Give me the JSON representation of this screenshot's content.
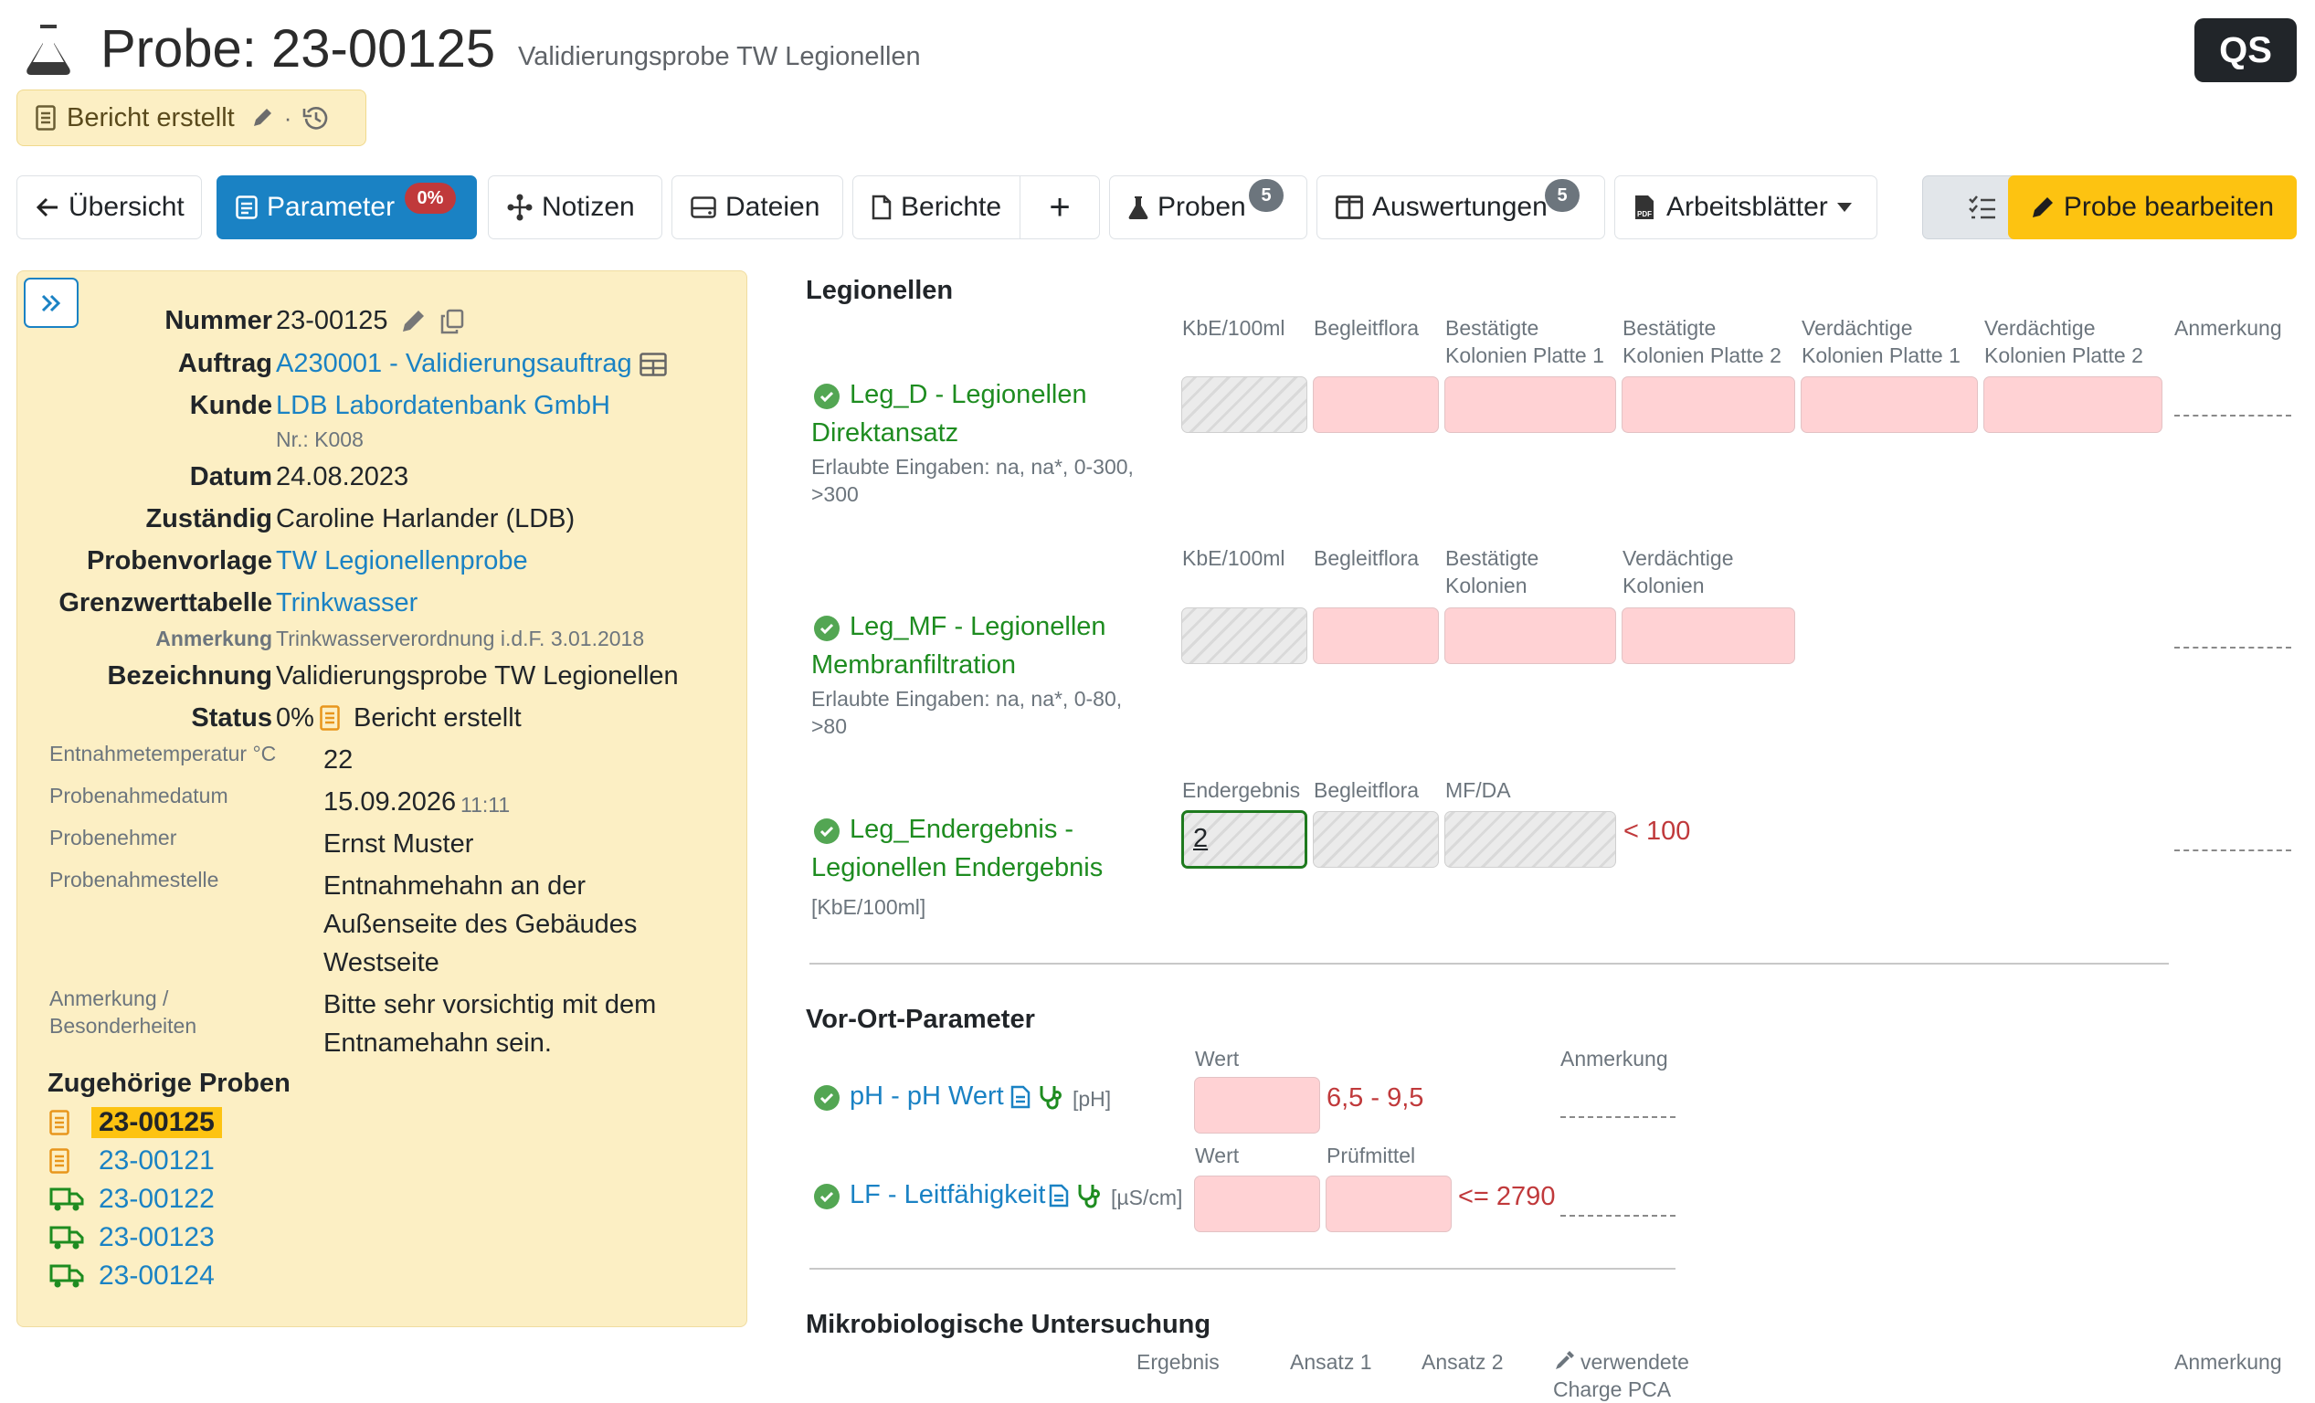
{
  "header": {
    "title": "Probe: 23-00125",
    "subtitle": "Validierungsprobe TW Legionellen",
    "qs": "QS"
  },
  "status_pill": {
    "label": "Bericht erstellt",
    "sep": "·"
  },
  "toolbar": {
    "back": "Übersicht",
    "parameter": "Parameter",
    "parameter_badge": "0%",
    "notizen": "Notizen",
    "dateien": "Dateien",
    "berichte": "Berichte",
    "add": "+",
    "proben": "Proben",
    "proben_count": "5",
    "auswertungen": "Auswertungen",
    "auswertungen_count": "5",
    "arbeitsblaetter": "Arbeitsblätter",
    "edit": "Probe bearbeiten"
  },
  "details": {
    "nummer": {
      "label": "Nummer",
      "value": "23-00125"
    },
    "auftrag": {
      "label": "Auftrag",
      "value": "A230001 - Validierungsauftrag"
    },
    "kunde": {
      "label": "Kunde",
      "value": "LDB Labordatenbank GmbH",
      "note": "Nr.: K008"
    },
    "datum": {
      "label": "Datum",
      "value": "24.08.2023"
    },
    "zustaendig": {
      "label": "Zuständig",
      "value": "Caroline Harlander (LDB)"
    },
    "probenvorlage": {
      "label": "Probenvorlage",
      "value": "TW Legionellenprobe"
    },
    "grenzwert": {
      "label": "Grenzwerttabelle",
      "value": "Trinkwasser"
    },
    "anmerkung": {
      "label": "Anmerkung",
      "value": "Trinkwasserverordnung i.d.F. 3.01.2018"
    },
    "bezeichnung": {
      "label": "Bezeichnung",
      "value": "Validierungsprobe TW Legionellen"
    },
    "status": {
      "label": "Status",
      "percent": "0%",
      "value": "Bericht erstellt"
    },
    "temp": {
      "label": "Entnahmetemperatur °C",
      "value": "22"
    },
    "pdatum": {
      "label": "Probenahmedatum",
      "value": "15.09.2026",
      "time": "11:11"
    },
    "nehmer": {
      "label": "Probenehmer",
      "value": "Ernst Muster"
    },
    "stelle": {
      "label": "Probenahmestelle",
      "lines": [
        "Entnahmehahn an der",
        "Außenseite des Gebäudes",
        "Westseite"
      ]
    },
    "besonder": {
      "label1": "Anmerkung /",
      "label2": "Besonderheiten",
      "lines": [
        "Bitte sehr vorsichtig mit dem",
        "Entnamehahn sein."
      ]
    }
  },
  "related": {
    "title": "Zugehörige Proben",
    "items": [
      "23-00125",
      "23-00121",
      "23-00122",
      "23-00123",
      "23-00124"
    ]
  },
  "legionellen": {
    "title": "Legionellen",
    "anmerkung": "Anmerkung",
    "p1": {
      "cols": [
        "KbE/100ml",
        "Begleitflora",
        "Bestätigte",
        "Kolonien Platte 1",
        "Bestätigte",
        "Kolonien Platte 2",
        "Verdächtige",
        "Kolonien Platte 1",
        "Verdächtige",
        "Kolonien Platte 2"
      ],
      "name1": "Leg_D - Legionellen",
      "name2": "Direktansatz",
      "hint1": "Erlaubte Eingaben: na, na*, 0-300,",
      "hint2": ">300"
    },
    "p2": {
      "cols": [
        "KbE/100ml",
        "Begleitflora",
        "Bestätigte",
        "Kolonien",
        "Verdächtige",
        "Kolonien"
      ],
      "name1": "Leg_MF - Legionellen",
      "name2": "Membranfiltration",
      "hint1": "Erlaubte Eingaben: na, na*, 0-80,",
      "hint2": ">80"
    },
    "p3": {
      "cols": [
        "Endergebnis",
        "Begleitflora",
        "MF/DA"
      ],
      "name1": "Leg_Endergebnis -",
      "name2": "Legionellen Endergebnis",
      "unit": "[KbE/100ml]",
      "value": "2",
      "limit": "< 100"
    }
  },
  "vorort": {
    "title": "Vor-Ort-Parameter",
    "wert": "Wert",
    "anmerkung": "Anmerkung",
    "pruefmittel": "Prüfmittel",
    "ph": {
      "name": "pH - pH Wert",
      "unit": "[pH]",
      "limit": "6,5 - 9,5"
    },
    "lf": {
      "name": "LF - Leitfähigkeit",
      "unit": "[µS/cm]",
      "limit": "<= 2790"
    }
  },
  "mikro": {
    "title": "Mikrobiologische Untersuchung",
    "cols": [
      "Ergebnis",
      "Ansatz 1",
      "Ansatz 2",
      "verwendete",
      "Charge PCA",
      "Anmerkung"
    ]
  },
  "colors": {
    "primary": "#1a82c4",
    "warning": "#fdc311",
    "panel": "#fcefc4",
    "success": "#1e8c20",
    "danger": "#c0393b"
  }
}
